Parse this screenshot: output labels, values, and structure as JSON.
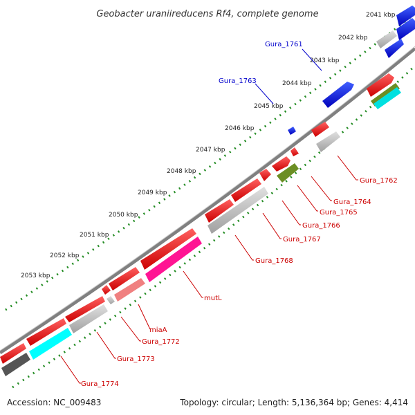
{
  "title": "Geobacter uraniireducens Rf4, complete genome",
  "footer": {
    "accession": "Accession: NC_009483",
    "stats": "Topology: circular; Length: 5,136,364 bp; Genes: 4,414"
  },
  "kbp_ticks": [
    "2041 kbp",
    "2042 kbp",
    "2043 kbp",
    "2044 kbp",
    "2045 kbp",
    "2046 kbp",
    "2047 kbp",
    "2048 kbp",
    "2049 kbp",
    "2050 kbp",
    "2051 kbp",
    "2052 kbp",
    "2053 kbp"
  ],
  "gene_labels_forward": [
    "Gura_1761",
    "Gura_1763"
  ],
  "gene_labels_reverse": [
    "Gura_1762",
    "Gura_1764",
    "Gura_1765",
    "Gura_1766",
    "Gura_1767",
    "Gura_1768",
    "mutL",
    "miaA",
    "Gura_1772",
    "Gura_1773",
    "Gura_1774"
  ],
  "colors": {
    "forward_label": "#0000cc",
    "reverse_label": "#cc0000",
    "tick_dots": "#228b22",
    "backbone": "#808080",
    "gene_blue": "#0000ff",
    "gene_red": "#ff0000",
    "gene_gray": "#bdbdbd",
    "gene_dark_gray": "#555555",
    "gene_olive": "#6b8e23",
    "gene_cyan": "#00ffff",
    "gene_pink": "#ff1493",
    "gene_salmon": "#f08080"
  }
}
